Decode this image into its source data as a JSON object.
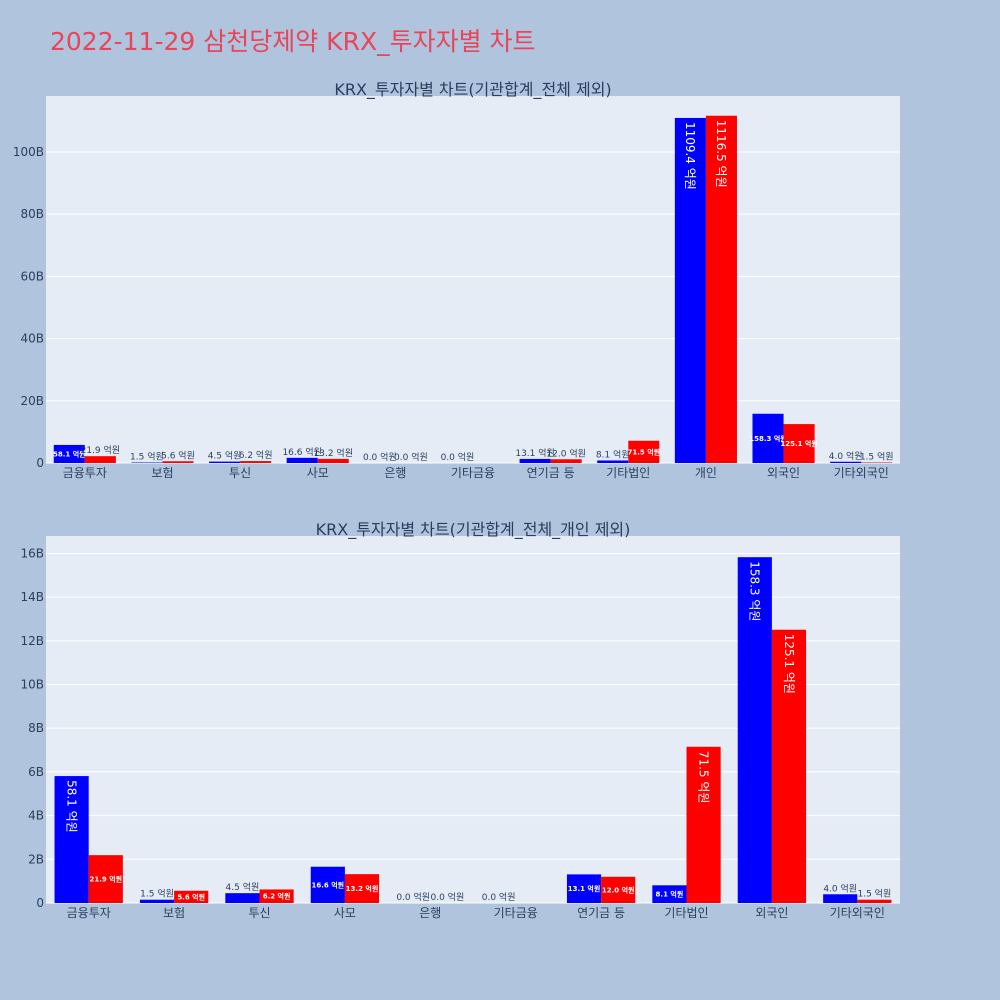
{
  "page": {
    "title": "2022-11-29 삼천당제약 KRX_투자자별 차트"
  },
  "colors": {
    "series_a": "#0000ff",
    "series_b": "#ff0000",
    "plot_bg": "#e5ecf6",
    "page_bg": "#b0c4de",
    "title": "#e8455a"
  },
  "chart_data": [
    {
      "type": "bar",
      "title": "KRX_투자자별 차트(기관합계_전체 제외)",
      "categories": [
        "금융투자",
        "보험",
        "투신",
        "사모",
        "은행",
        "기타금융",
        "연기금 등",
        "기타법인",
        "개인",
        "외국인",
        "기타외국인"
      ],
      "series": [
        {
          "values": [
            5.81,
            0.15,
            0.45,
            1.66,
            0.0,
            0.0,
            1.31,
            0.81,
            110.94,
            15.83,
            0.4
          ],
          "labels": [
            "58.1 억원",
            "1.5 억원",
            "4.5 억원",
            "16.6 억원",
            "0.0 억원",
            "0.0 억원",
            "13.1 억원",
            "8.1 억원",
            "1109.4 억원",
            "158.3 억원",
            "4.0 억원"
          ]
        },
        {
          "values": [
            2.19,
            0.56,
            0.62,
            1.32,
            0.0,
            null,
            1.2,
            7.15,
            111.65,
            12.51,
            0.15
          ],
          "labels": [
            "21.9 억원",
            "5.6 억원",
            "6.2 억원",
            "13.2 억원",
            "0.0 억원",
            "",
            "12.0 억원",
            "71.5 억원",
            "1116.5 억원",
            "125.1 억원",
            "1.5 억원"
          ]
        }
      ],
      "ylim": [
        0,
        118
      ],
      "yticks": [
        0,
        20,
        40,
        60,
        80,
        100
      ],
      "ytick_labels": [
        "0",
        "20B",
        "40B",
        "60B",
        "80B",
        "100B"
      ],
      "grid": true
    },
    {
      "type": "bar",
      "title": "KRX_투자자별 차트(기관합계_전체_개인 제외)",
      "categories": [
        "금융투자",
        "보험",
        "투신",
        "사모",
        "은행",
        "기타금융",
        "연기금 등",
        "기타법인",
        "외국인",
        "기타외국인"
      ],
      "series": [
        {
          "values": [
            5.81,
            0.15,
            0.45,
            1.66,
            0.0,
            0.0,
            1.31,
            0.81,
            15.83,
            0.4
          ],
          "labels": [
            "58.1 억원",
            "1.5 억원",
            "4.5 억원",
            "16.6 억원",
            "0.0 억원",
            "0.0 억원",
            "13.1 억원",
            "8.1 억원",
            "158.3 억원",
            "4.0 억원"
          ]
        },
        {
          "values": [
            2.19,
            0.56,
            0.62,
            1.32,
            0.0,
            null,
            1.2,
            7.15,
            12.51,
            0.15
          ],
          "labels": [
            "21.9 억원",
            "5.6 억원",
            "6.2 억원",
            "13.2 억원",
            "0.0 억원",
            "",
            "12.0 억원",
            "71.5 억원",
            "125.1 억원",
            "1.5 억원"
          ]
        }
      ],
      "ylim": [
        0,
        16.8
      ],
      "yticks": [
        0,
        2,
        4,
        6,
        8,
        10,
        12,
        14,
        16
      ],
      "ytick_labels": [
        "0",
        "2B",
        "4B",
        "6B",
        "8B",
        "10B",
        "12B",
        "14B",
        "16B"
      ],
      "grid": true
    }
  ]
}
